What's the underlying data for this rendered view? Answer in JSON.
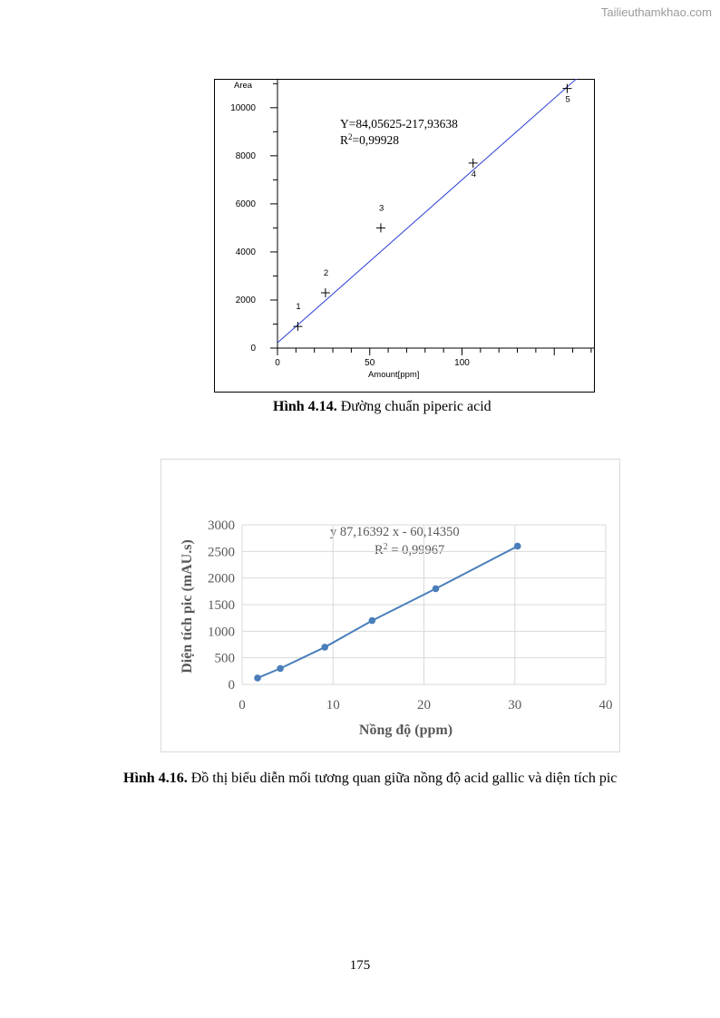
{
  "watermark": "Tailieuthamkhao.com",
  "page_number": "175",
  "figure1": {
    "caption_bold": "Hình 4.14.",
    "caption_text": " Đường chuẩn piperic acid",
    "equation_line1": "Y=84,05625-217,93638",
    "r2_prefix": "R",
    "r2_sup": "2",
    "r2_value": "=0,99928"
  },
  "figure2": {
    "caption_bold": "Hình 4.16.",
    "caption_text": " Đồ thị biểu diễn mối tương quan giữa nồng độ acid gallic và diện tích pic",
    "equation_line1": "y   87,16392 x - 60,14350",
    "r2_prefix": "R",
    "r2_sup": "2",
    "r2_value": " = 0,99967"
  },
  "chart_data": [
    {
      "type": "scatter",
      "title": "",
      "xlabel": "Amount[ppm]",
      "ylabel": "Area",
      "xlim": [
        0,
        172
      ],
      "ylim": [
        0,
        11200
      ],
      "x_ticks": [
        0,
        50,
        100
      ],
      "y_ticks": [
        0,
        2000,
        4000,
        6000,
        8000,
        10000
      ],
      "points": [
        {
          "label": "1",
          "x": 11,
          "y": 900
        },
        {
          "label": "2",
          "x": 26,
          "y": 2300
        },
        {
          "label": "3",
          "x": 56,
          "y": 5000
        },
        {
          "label": "4",
          "x": 106,
          "y": 7700
        },
        {
          "label": "5",
          "x": 157,
          "y": 10800
        }
      ],
      "trendline": {
        "x": [
          0,
          172
        ],
        "y": [
          220,
          11880
        ]
      },
      "line_color": "#2b3fd6",
      "grid": false
    },
    {
      "type": "line",
      "title": "",
      "xlabel": "Nồng độ (ppm)",
      "ylabel": "Diện tích pic (mAU.s)",
      "xlim": [
        0,
        40
      ],
      "ylim": [
        0,
        3000
      ],
      "x_ticks": [
        0,
        10,
        20,
        30,
        40
      ],
      "y_ticks": [
        0,
        500,
        1000,
        1500,
        2000,
        2500,
        3000
      ],
      "series": [
        {
          "x": [
            1.7,
            4.2,
            9.1,
            14.3,
            21.3,
            30.3
          ],
          "values": [
            120,
            300,
            700,
            1200,
            1800,
            2600
          ]
        }
      ],
      "line_color": "#4a7ebb",
      "grid": true
    }
  ]
}
